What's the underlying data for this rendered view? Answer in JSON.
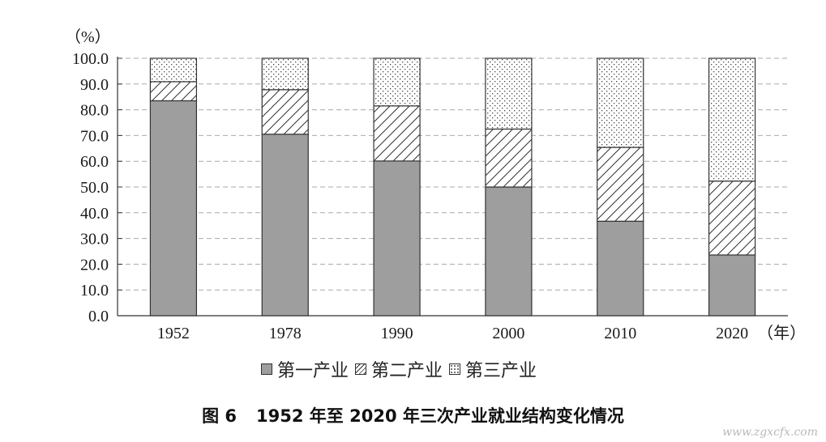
{
  "chart_data": {
    "type": "bar",
    "stacked": true,
    "categories": [
      "1952",
      "1978",
      "1990",
      "2000",
      "2010",
      "2020"
    ],
    "series": [
      {
        "name": "第一产业",
        "values": [
          83.5,
          70.5,
          60.1,
          50.0,
          36.7,
          23.6
        ]
      },
      {
        "name": "第二产业",
        "values": [
          7.4,
          17.3,
          21.4,
          22.5,
          28.7,
          28.7
        ]
      },
      {
        "name": "第三产业",
        "values": [
          9.1,
          12.2,
          18.5,
          27.5,
          34.6,
          47.7
        ]
      }
    ],
    "ylabel": "（%）",
    "x_unit": "（年）",
    "ylim": [
      0,
      100
    ],
    "yticks": [
      "0.0",
      "10.0",
      "20.0",
      "30.0",
      "40.0",
      "50.0",
      "60.0",
      "70.0",
      "80.0",
      "90.0",
      "100.0"
    ],
    "grid": "horizontal dashed",
    "legend": "bottom",
    "colors": {
      "first": "#9e9e9e",
      "outline": "#333333",
      "grid": "#aaaaaa"
    }
  },
  "caption": {
    "figure_number": "图 6",
    "title": "1952 年至 2020 年三次产业就业结构变化情况"
  },
  "watermark": "www.zgxcfx.com"
}
